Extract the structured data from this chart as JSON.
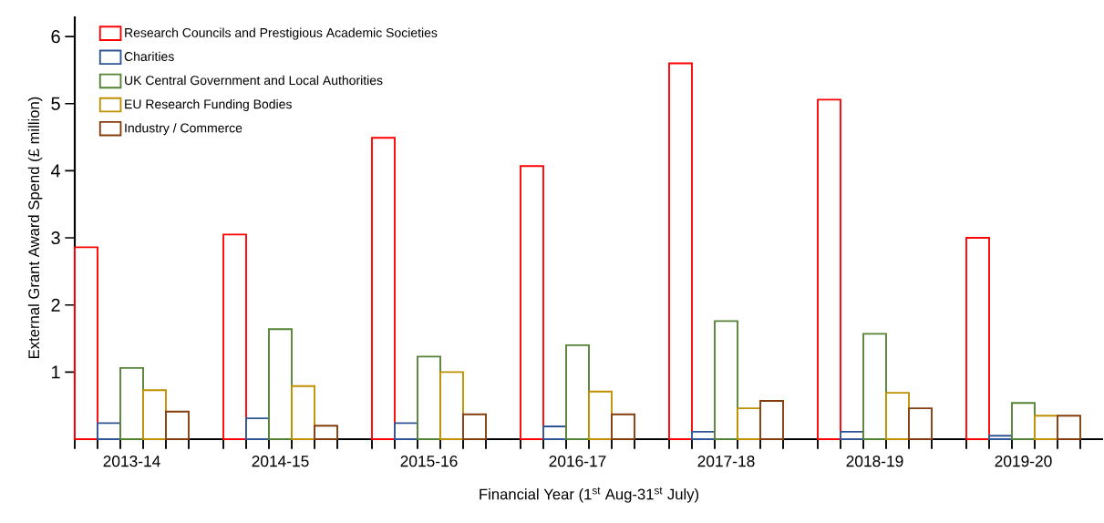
{
  "chart_data": {
    "type": "bar",
    "xlabel": "Financial Year (1$^{st}$ Aug-31$^{st}$ July)",
    "ylabel": "External Grant Award Spend (£ million)",
    "categories": [
      "2013-14",
      "2014-15",
      "2015-16",
      "2016-17",
      "2017-18",
      "2018-19",
      "2019-20"
    ],
    "series": [
      {
        "name": "Research Councils and Prestigious Academic Societies",
        "color": "#ff0000",
        "values": [
          2.86,
          3.05,
          4.49,
          4.07,
          5.6,
          5.06,
          3.0
        ]
      },
      {
        "name": "Charities",
        "color": "#2f5597",
        "values": [
          0.24,
          0.31,
          0.24,
          0.19,
          0.11,
          0.11,
          0.05
        ]
      },
      {
        "name": "UK Central Government and Local Authorities",
        "color": "#548235",
        "values": [
          1.06,
          1.64,
          1.23,
          1.4,
          1.76,
          1.57,
          0.54
        ]
      },
      {
        "name": "EU Research Funding Bodies",
        "color": "#bf9000",
        "values": [
          0.73,
          0.79,
          1.0,
          0.71,
          0.46,
          0.69,
          0.35
        ]
      },
      {
        "name": "Industry / Commerce",
        "color": "#843c0c",
        "values": [
          0.41,
          0.2,
          0.37,
          0.37,
          0.57,
          0.46,
          0.35
        ]
      }
    ],
    "ylim": [
      0,
      6.3
    ],
    "yticks": [
      1,
      2,
      3,
      4,
      5,
      6
    ],
    "legend": "top left",
    "grid": false
  }
}
